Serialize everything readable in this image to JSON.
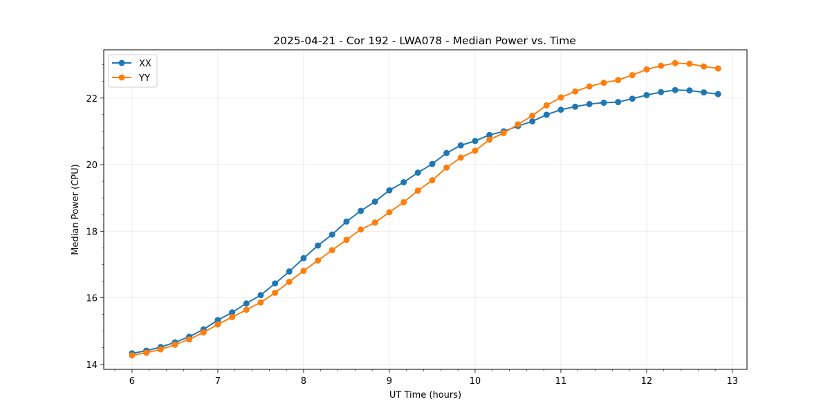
{
  "chart_data": {
    "type": "line",
    "title": "2025-04-21 - Cor 192 - LWA078 - Median Power vs. Time",
    "xlabel": "UT Time (hours)",
    "ylabel": "Median Power (CPU)",
    "xlim": [
      5.67,
      13.17
    ],
    "ylim": [
      13.85,
      23.45
    ],
    "xticks": [
      6,
      7,
      8,
      9,
      10,
      11,
      12,
      13
    ],
    "yticks": [
      14,
      16,
      18,
      20,
      22
    ],
    "grid": true,
    "legend_position": "upper-left",
    "x": [
      6.0,
      6.167,
      6.333,
      6.5,
      6.667,
      6.833,
      7.0,
      7.167,
      7.333,
      7.5,
      7.667,
      7.833,
      8.0,
      8.167,
      8.333,
      8.5,
      8.667,
      8.833,
      9.0,
      9.167,
      9.333,
      9.5,
      9.667,
      9.833,
      10.0,
      10.167,
      10.333,
      10.5,
      10.667,
      10.833,
      11.0,
      11.167,
      11.333,
      11.5,
      11.667,
      11.833,
      12.0,
      12.167,
      12.333,
      12.5,
      12.667,
      12.833
    ],
    "series": [
      {
        "name": "XX",
        "color": "#1f77b4",
        "values": [
          14.33,
          14.41,
          14.52,
          14.66,
          14.83,
          15.05,
          15.33,
          15.56,
          15.83,
          16.08,
          16.43,
          16.79,
          17.19,
          17.57,
          17.9,
          18.29,
          18.61,
          18.89,
          19.23,
          19.47,
          19.76,
          20.02,
          20.35,
          20.58,
          20.71,
          20.89,
          21.0,
          21.16,
          21.3,
          21.5,
          21.65,
          21.74,
          21.82,
          21.86,
          21.88,
          21.98,
          22.09,
          22.18,
          22.24,
          22.23,
          22.17,
          22.12
        ]
      },
      {
        "name": "YY",
        "color": "#ff7f0e",
        "values": [
          14.27,
          14.35,
          14.45,
          14.59,
          14.75,
          14.96,
          15.2,
          15.42,
          15.64,
          15.86,
          16.15,
          16.48,
          16.81,
          17.12,
          17.43,
          17.74,
          18.05,
          18.26,
          18.57,
          18.87,
          19.22,
          19.53,
          19.91,
          20.21,
          20.42,
          20.75,
          20.95,
          21.21,
          21.47,
          21.78,
          22.02,
          22.2,
          22.35,
          22.46,
          22.54,
          22.69,
          22.86,
          22.97,
          23.05,
          23.03,
          22.95,
          22.89
        ]
      }
    ]
  }
}
